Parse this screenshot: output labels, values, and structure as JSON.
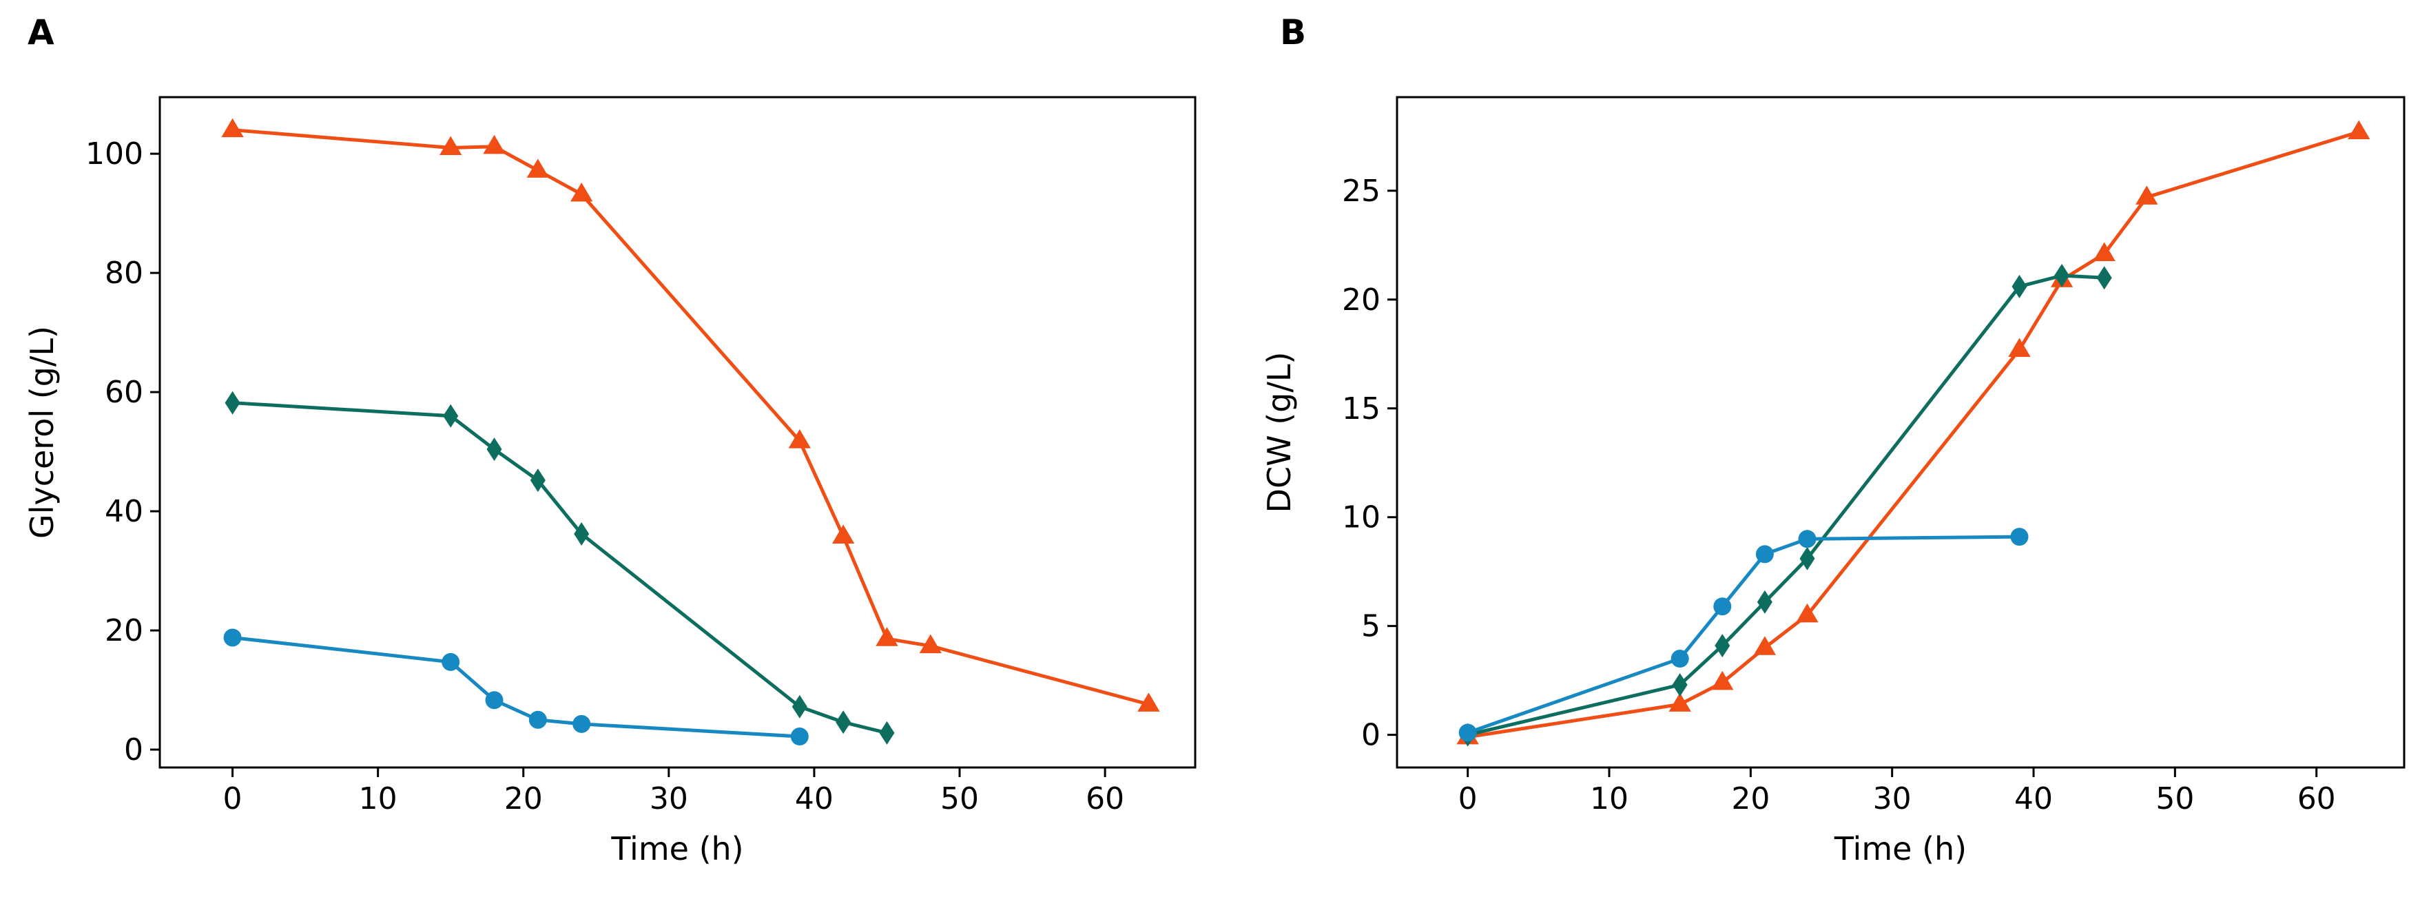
{
  "figure": {
    "panels": [
      {
        "letter": "A"
      },
      {
        "letter": "B"
      }
    ]
  },
  "chart_data": [
    {
      "type": "line",
      "panel": "A",
      "title": "",
      "xlabel": "Time (h)",
      "ylabel": "Glycerol (g/L)",
      "xlim": [
        -5,
        66.2
      ],
      "ylim": [
        -3,
        109.5
      ],
      "xticks": [
        0,
        10,
        20,
        30,
        40,
        50,
        60
      ],
      "yticks": [
        0,
        20,
        40,
        60,
        80,
        100
      ],
      "grid": false,
      "legend": "none",
      "series": [
        {
          "name": "orange-triangle",
          "color": "#f04e14",
          "marker": "triangle",
          "x": [
            0,
            15,
            18,
            21,
            24,
            39,
            42,
            45,
            48,
            63
          ],
          "y": [
            104,
            101,
            101.2,
            97.2,
            93.2,
            51.8,
            35.8,
            18.6,
            17.4,
            7.6
          ]
        },
        {
          "name": "green-diamond",
          "color": "#0d6e5f",
          "marker": "diamond",
          "x": [
            0,
            15,
            18,
            21,
            24,
            39,
            42,
            45
          ],
          "y": [
            58.2,
            56,
            50.4,
            45.2,
            36.2,
            7.2,
            4.6,
            2.8
          ]
        },
        {
          "name": "blue-circle",
          "color": "#1789c2",
          "marker": "circle",
          "x": [
            0,
            15,
            18,
            21,
            24,
            39
          ],
          "y": [
            18.8,
            14.7,
            8.3,
            5.0,
            4.3,
            2.2
          ]
        }
      ]
    },
    {
      "type": "line",
      "panel": "B",
      "title": "",
      "xlabel": "Time (h)",
      "ylabel": "DCW (g/L)",
      "xlim": [
        -5,
        66.2
      ],
      "ylim": [
        -1.5,
        29.3
      ],
      "xticks": [
        0,
        10,
        20,
        30,
        40,
        50,
        60
      ],
      "yticks": [
        0,
        5,
        10,
        15,
        20,
        25
      ],
      "grid": false,
      "legend": "none",
      "series": [
        {
          "name": "orange-triangle",
          "color": "#f04e14",
          "marker": "triangle",
          "x": [
            0,
            15,
            18,
            21,
            24,
            39,
            42,
            45,
            48,
            63
          ],
          "y": [
            -0.1,
            1.4,
            2.4,
            4.0,
            5.5,
            17.7,
            20.9,
            22.1,
            24.7,
            27.7
          ]
        },
        {
          "name": "green-diamond",
          "color": "#0d6e5f",
          "marker": "diamond",
          "x": [
            0,
            15,
            18,
            21,
            24,
            39,
            42,
            45
          ],
          "y": [
            0.0,
            2.3,
            4.1,
            6.1,
            8.1,
            20.6,
            21.1,
            21.0
          ]
        },
        {
          "name": "blue-circle",
          "color": "#1789c2",
          "marker": "circle",
          "x": [
            0,
            15,
            18,
            21,
            24,
            39
          ],
          "y": [
            0.1,
            3.5,
            5.9,
            8.3,
            9.0,
            9.1
          ]
        }
      ]
    }
  ]
}
